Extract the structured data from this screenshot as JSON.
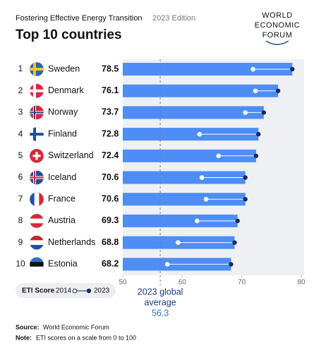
{
  "chart_data": {
    "type": "bar",
    "subtitle": "Fostering Effective Energy Transition",
    "edition": "2023 Edition",
    "title": "Top 10 countries",
    "logo": [
      "WORLD",
      "ECONOMIC",
      "FORUM"
    ],
    "ranks": [
      "1",
      "2",
      "3",
      "4",
      "5",
      "6",
      "7",
      "8",
      "9",
      "10"
    ],
    "categories": [
      "Sweden",
      "Denmark",
      "Norway",
      "Finland",
      "Switzerland",
      "Iceland",
      "France",
      "Austria",
      "Netherlands",
      "Estonia"
    ],
    "series": [
      {
        "name": "2023",
        "color": "#1b2a5c",
        "bar_color": "#4d8df5",
        "values": [
          78.5,
          76.1,
          73.7,
          72.8,
          72.4,
          70.6,
          70.6,
          69.3,
          68.8,
          68.2
        ]
      },
      {
        "name": "2014",
        "color": "#ffffff",
        "values": [
          71.9,
          72.3,
          70.6,
          62.9,
          66.1,
          63.3,
          64.0,
          62.5,
          59.3,
          57.5
        ]
      }
    ],
    "xlim": [
      50,
      80
    ],
    "xticks": [
      50,
      60,
      70,
      80
    ],
    "legend_title": "ETI Score",
    "average_label": [
      "2023 global",
      "average"
    ],
    "average_value": 56.3,
    "source_label": "Source:",
    "source": "World Economic Forum",
    "note_label": "Note:",
    "note": "ETI scores on a scale from 0 to 100"
  }
}
